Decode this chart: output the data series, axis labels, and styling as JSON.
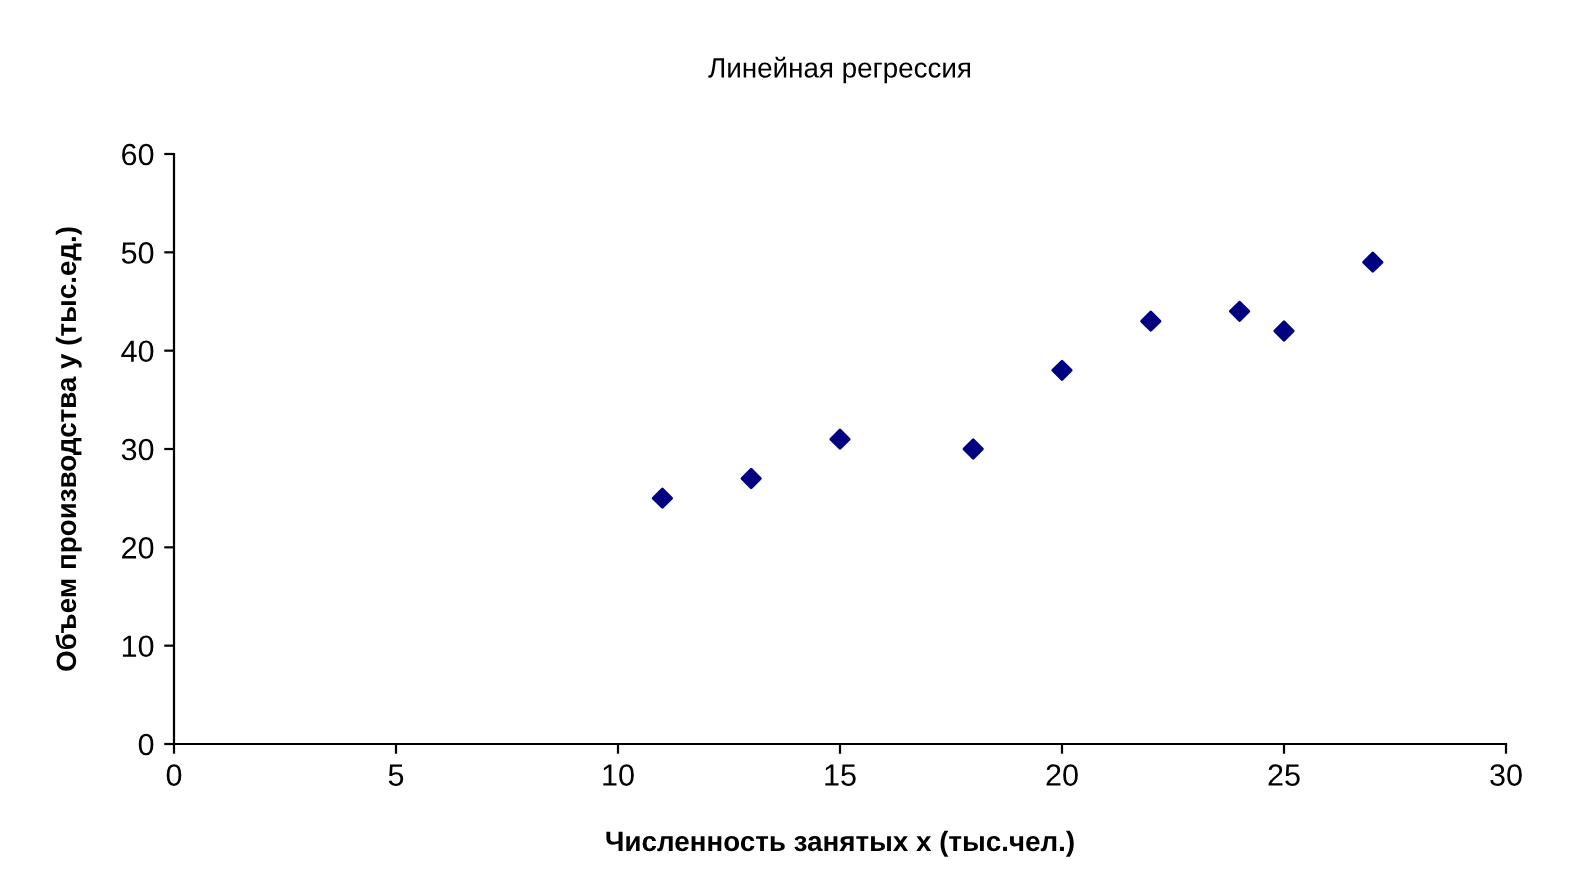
{
  "chart_data": {
    "type": "scatter",
    "title": "Линейная регрессия",
    "xlabel": "Численность занятых x (тыс.чел.)",
    "ylabel": "Объем производства y (тыс.ед.)",
    "x": [
      11,
      13,
      15,
      18,
      20,
      22,
      24,
      25,
      27
    ],
    "series": [
      {
        "color": "#000080",
        "values": [
          25,
          27,
          31,
          30,
          38,
          43,
          44,
          42,
          49
        ]
      }
    ],
    "xlim": [
      0,
      30
    ],
    "xticks": [
      0,
      5,
      10,
      15,
      20,
      25,
      30
    ],
    "ylim": [
      0,
      60
    ],
    "yticks": [
      0,
      10,
      20,
      30,
      40,
      50,
      60
    ],
    "marker": "diamond",
    "grid": false,
    "legend": false
  }
}
